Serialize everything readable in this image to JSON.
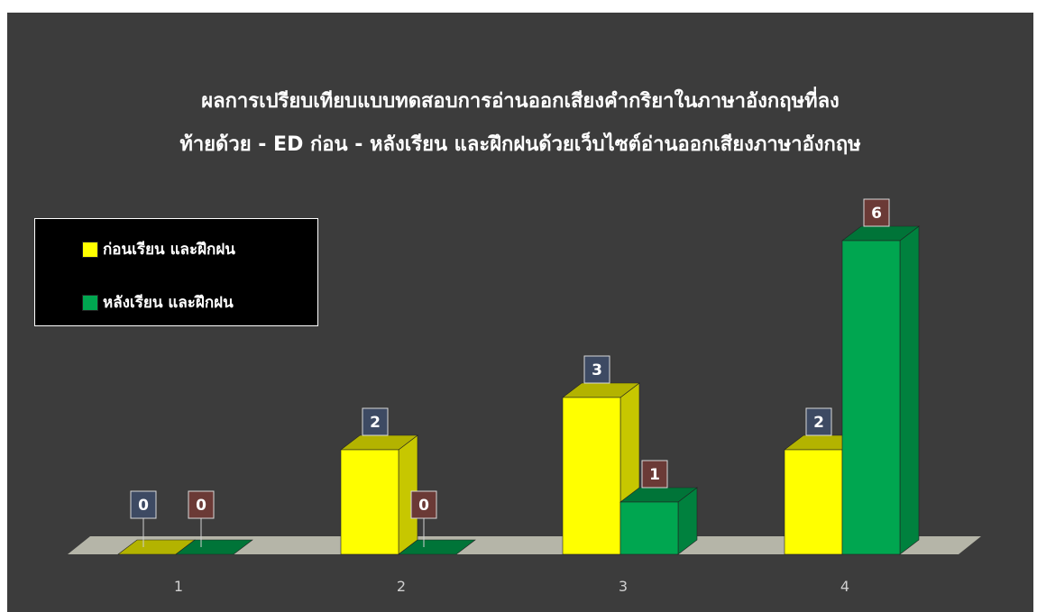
{
  "chart_data": {
    "type": "bar",
    "title_lines": [
      "ผลการเปรียบเทียบแบบทดสอบการอ่านออกเสียงคำกริยาในภาษาอังกฤษที่ลง",
      "ท้ายด้วย - ED ก่อน - หลังเรียน และฝึกฝนด้วยเว็บไซต์อ่านออกเสียงภาษาอังกฤษ"
    ],
    "categories": [
      "1",
      "2",
      "3",
      "4"
    ],
    "series": [
      {
        "name": "ก่อนเรียน และฝึกฝน",
        "values": [
          0,
          2,
          3,
          2
        ],
        "color": "#ffff00"
      },
      {
        "name": "หลังเรียน และฝึกฝน",
        "values": [
          0,
          0,
          1,
          6
        ],
        "color": "#00a650"
      }
    ],
    "ylim": [
      0,
      6
    ],
    "grid": false,
    "legend_position": "left",
    "colors": {
      "background": "#3c3c3c",
      "floor": "#b5b5a8",
      "label_box_before": "#3d4a63",
      "label_box_after": "#6b3a36"
    }
  }
}
